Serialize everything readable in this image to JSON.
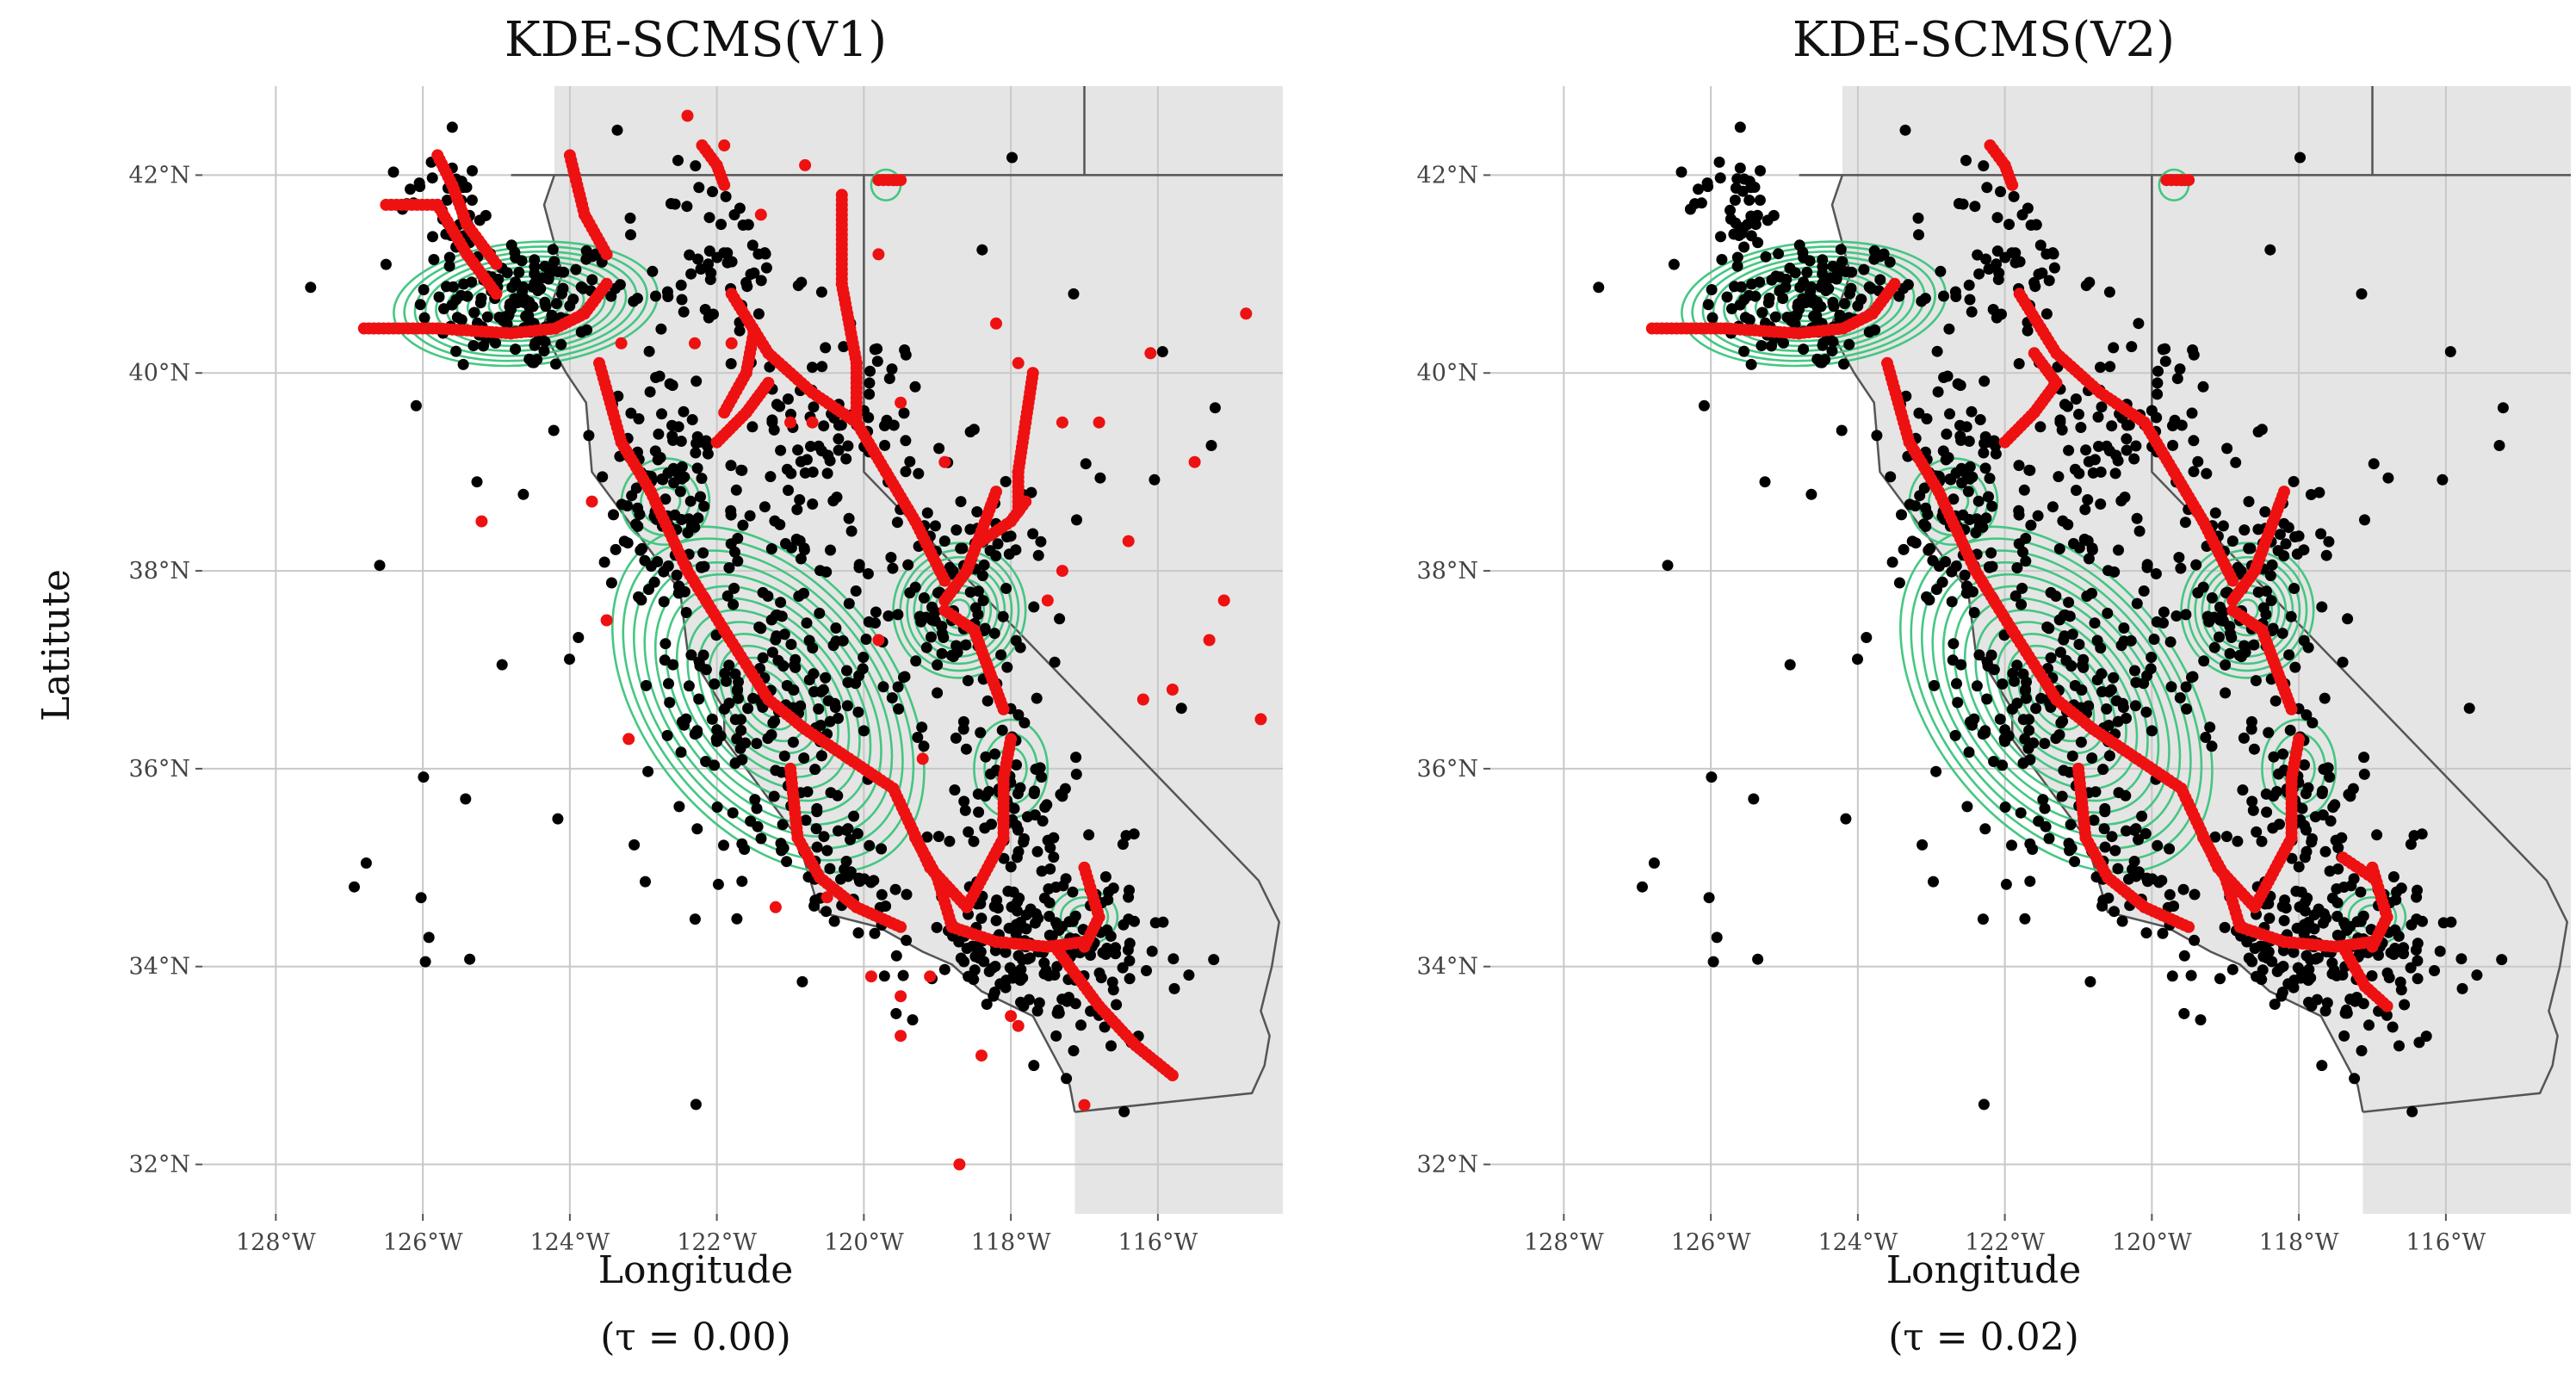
{
  "panels": [
    {
      "title": "KDE-SCMS(V1)",
      "xlabel": "Longitude",
      "caption": "(τ = 0.00)",
      "variant": "v1"
    },
    {
      "title": "KDE-SCMS(V2)",
      "xlabel": "Longitude",
      "caption": "(τ = 0.02)",
      "variant": "v2"
    }
  ],
  "ylabel": "Latitute",
  "axes": {
    "lon_range": [
      -129,
      -114.3
    ],
    "lat_range": [
      31.5,
      42.9
    ],
    "x_ticks": [
      {
        "value": -128,
        "label": "128°W"
      },
      {
        "value": -126,
        "label": "126°W"
      },
      {
        "value": -124,
        "label": "124°W"
      },
      {
        "value": -122,
        "label": "122°W"
      },
      {
        "value": -120,
        "label": "120°W"
      },
      {
        "value": -118,
        "label": "118°W"
      },
      {
        "value": -116,
        "label": "116°W"
      }
    ],
    "y_ticks": [
      {
        "value": 32,
        "label": "32°N"
      },
      {
        "value": 34,
        "label": "34°N"
      },
      {
        "value": 36,
        "label": "36°N"
      },
      {
        "value": 38,
        "label": "38°N"
      },
      {
        "value": 40,
        "label": "40°N"
      },
      {
        "value": 42,
        "label": "42°N"
      }
    ]
  },
  "colors": {
    "land": "#e5e5e5",
    "border": "#555555",
    "grid": "#c8c8c8",
    "contour": "#3cc47c",
    "points": "#000000",
    "ridges": "#ee1111"
  },
  "contour_centers": [
    {
      "lon": -124.6,
      "lat": 40.7,
      "levels": 12
    },
    {
      "lon": -121.3,
      "lat": 36.7,
      "levels": 14
    },
    {
      "lon": -118.7,
      "lat": 37.6,
      "levels": 9
    },
    {
      "lon": -118.0,
      "lat": 36.0,
      "levels": 3
    },
    {
      "lon": -117.0,
      "lat": 34.5,
      "levels": 3
    },
    {
      "lon": -122.7,
      "lat": 38.7,
      "levels": 4
    },
    {
      "lon": -119.7,
      "lat": 41.9,
      "levels": 1
    }
  ],
  "ridges_shared": [
    [
      [
        -126.8,
        40.45
      ],
      [
        -125.8,
        40.45
      ],
      [
        -124.8,
        40.4
      ],
      [
        -124.2,
        40.45
      ],
      [
        -123.8,
        40.6
      ],
      [
        -123.5,
        40.9
      ]
    ],
    [
      [
        -123.6,
        40.1
      ],
      [
        -123.3,
        39.3
      ],
      [
        -122.9,
        38.8
      ],
      [
        -122.4,
        38.0
      ],
      [
        -121.9,
        37.4
      ],
      [
        -121.3,
        36.7
      ],
      [
        -120.8,
        36.4
      ],
      [
        -120.2,
        36.1
      ],
      [
        -119.6,
        35.8
      ]
    ],
    [
      [
        -121.0,
        36.0
      ],
      [
        -120.9,
        35.3
      ],
      [
        -120.6,
        34.9
      ],
      [
        -120.1,
        34.6
      ],
      [
        -119.5,
        34.4
      ]
    ],
    [
      [
        -119.3,
        35.3
      ],
      [
        -119.0,
        34.9
      ],
      [
        -118.8,
        34.4
      ],
      [
        -118.2,
        34.25
      ],
      [
        -117.5,
        34.2
      ],
      [
        -117.0,
        34.25
      ]
    ],
    [
      [
        -119.6,
        35.8
      ],
      [
        -119.1,
        35.0
      ],
      [
        -118.6,
        34.6
      ],
      [
        -118.1,
        35.3
      ],
      [
        -118.1,
        35.9
      ],
      [
        -118.0,
        36.3
      ]
    ],
    [
      [
        -118.9,
        37.7
      ],
      [
        -118.6,
        38.0
      ],
      [
        -118.4,
        38.4
      ],
      [
        -118.2,
        38.8
      ]
    ],
    [
      [
        -118.9,
        37.6
      ],
      [
        -118.5,
        37.4
      ],
      [
        -118.3,
        37.0
      ],
      [
        -118.1,
        36.6
      ]
    ],
    [
      [
        -121.8,
        40.8
      ],
      [
        -121.3,
        40.2
      ],
      [
        -120.7,
        39.8
      ],
      [
        -120.1,
        39.5
      ],
      [
        -119.7,
        39.0
      ],
      [
        -119.3,
        38.5
      ],
      [
        -118.9,
        37.9
      ]
    ],
    [
      [
        -121.3,
        39.9
      ],
      [
        -121.6,
        39.6
      ],
      [
        -122.0,
        39.3
      ]
    ],
    [
      [
        -117.0,
        35.0
      ],
      [
        -116.8,
        34.5
      ],
      [
        -117.0,
        34.2
      ]
    ],
    [
      [
        -122.2,
        42.3
      ],
      [
        -122.0,
        42.1
      ],
      [
        -121.9,
        41.9
      ]
    ],
    [
      [
        -119.8,
        41.95
      ],
      [
        -119.6,
        41.95
      ],
      [
        -119.5,
        41.95
      ]
    ]
  ],
  "ridges_v1_extra": [
    [
      [
        -126.5,
        41.7
      ],
      [
        -125.8,
        41.7
      ],
      [
        -125.4,
        41.2
      ],
      [
        -125.0,
        40.8
      ]
    ],
    [
      [
        -125.0,
        41.1
      ],
      [
        -125.4,
        41.5
      ],
      [
        -125.6,
        41.9
      ],
      [
        -125.8,
        42.2
      ]
    ],
    [
      [
        -124.0,
        42.2
      ],
      [
        -123.8,
        41.6
      ],
      [
        -123.5,
        41.2
      ]
    ],
    [
      [
        -120.3,
        41.8
      ],
      [
        -120.3,
        40.9
      ],
      [
        -120.1,
        40.1
      ],
      [
        -120.1,
        39.5
      ]
    ],
    [
      [
        -117.7,
        40.0
      ],
      [
        -117.8,
        39.5
      ],
      [
        -117.9,
        39.0
      ],
      [
        -117.9,
        38.6
      ]
    ],
    [
      [
        -117.4,
        34.2
      ],
      [
        -116.8,
        33.6
      ],
      [
        -116.3,
        33.2
      ],
      [
        -115.8,
        32.9
      ]
    ],
    [
      [
        -118.4,
        38.3
      ],
      [
        -118.0,
        38.5
      ],
      [
        -117.8,
        38.7
      ]
    ],
    [
      [
        -121.9,
        39.6
      ],
      [
        -121.6,
        40.0
      ],
      [
        -121.5,
        40.4
      ]
    ]
  ],
  "ridges_v2_extra": [
    [
      [
        -117.4,
        34.2
      ],
      [
        -117.1,
        33.8
      ],
      [
        -116.8,
        33.6
      ]
    ],
    [
      [
        -121.6,
        40.2
      ],
      [
        -121.3,
        39.9
      ]
    ],
    [
      [
        -117.4,
        35.1
      ],
      [
        -117.0,
        34.9
      ]
    ]
  ],
  "noise_ridge_points": [
    [
      -122.4,
      42.6
    ],
    [
      -121.9,
      42.3
    ],
    [
      -121.4,
      41.6
    ],
    [
      -120.8,
      42.1
    ],
    [
      -119.8,
      41.2
    ],
    [
      -118.2,
      40.5
    ],
    [
      -117.9,
      40.1
    ],
    [
      -117.3,
      39.5
    ],
    [
      -116.8,
      39.5
    ],
    [
      -116.1,
      40.2
    ],
    [
      -115.5,
      39.1
    ],
    [
      -115.1,
      37.7
    ],
    [
      -114.8,
      40.6
    ],
    [
      -114.6,
      36.5
    ],
    [
      -115.3,
      37.3
    ],
    [
      -116.4,
      38.3
    ],
    [
      -116.2,
      36.7
    ],
    [
      -115.8,
      36.8
    ],
    [
      -125.2,
      38.5
    ],
    [
      -123.7,
      38.7
    ],
    [
      -123.5,
      37.5
    ],
    [
      -123.2,
      36.3
    ],
    [
      -119.8,
      37.3
    ],
    [
      -118.9,
      39.1
    ],
    [
      -119.5,
      39.7
    ],
    [
      -120.7,
      39.5
    ],
    [
      -121.0,
      39.5
    ],
    [
      -117.5,
      37.7
    ],
    [
      -117.3,
      38.0
    ],
    [
      -119.1,
      33.9
    ],
    [
      -119.5,
      33.7
    ],
    [
      -119.5,
      33.3
    ],
    [
      -119.9,
      33.9
    ],
    [
      -118.0,
      33.5
    ],
    [
      -118.4,
      33.1
    ],
    [
      -117.9,
      33.4
    ],
    [
      -118.7,
      32.0
    ],
    [
      -117.0,
      32.6
    ],
    [
      -120.5,
      34.7
    ],
    [
      -121.2,
      34.6
    ],
    [
      -119.2,
      36.1
    ],
    [
      -123.3,
      40.3
    ],
    [
      -121.8,
      40.3
    ],
    [
      -122.3,
      40.3
    ]
  ]
}
